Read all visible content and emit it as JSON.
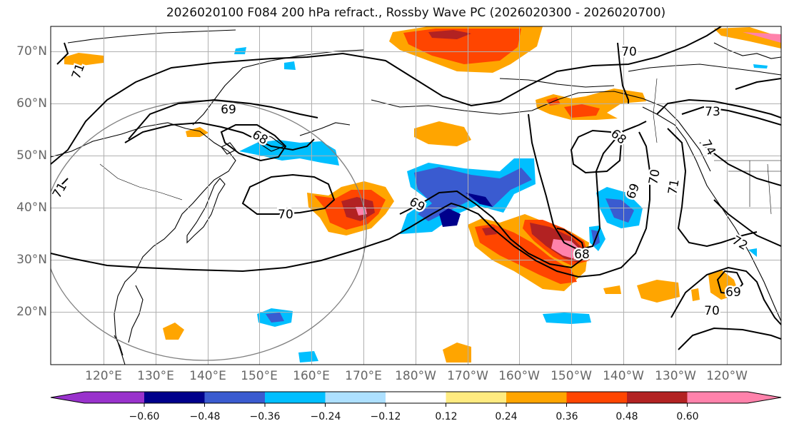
{
  "title": "2026020100 F084 200 hPa refract., Rossby Wave PC (2026020300 - 2026020700)",
  "latitude_labels": [
    "70°N",
    "60°N",
    "50°N",
    "40°N",
    "30°N",
    "20°N"
  ],
  "longitude_labels": [
    "120°E",
    "130°E",
    "140°E",
    "150°E",
    "160°E",
    "170°E",
    "180°W",
    "170°W",
    "160°W",
    "150°W",
    "140°W",
    "130°W",
    "120°W"
  ],
  "contour_labels": [
    "70",
    "73",
    "74",
    "69",
    "68",
    "70",
    "71",
    "69",
    "70",
    "69",
    "68",
    "71",
    "72",
    "68",
    "69",
    "70",
    "71"
  ],
  "colorbar": {
    "tick_labels": [
      "−0.60",
      "−0.48",
      "−0.36",
      "−0.24",
      "−0.12",
      "0.12",
      "0.24",
      "0.36",
      "0.48",
      "0.60"
    ],
    "colors": [
      "#9932CC",
      "#00008B",
      "#3A5BD0",
      "#00BFFF",
      "#ADE0FF",
      "#FFFFFF",
      "#FFEB80",
      "#FFA500",
      "#FF4500",
      "#B22222",
      "#FF82AB"
    ]
  }
}
